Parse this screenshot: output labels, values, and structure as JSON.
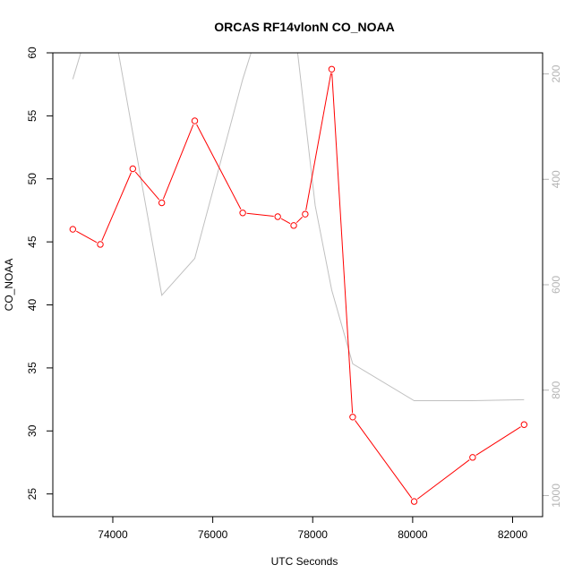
{
  "chart_data": {
    "type": "line",
    "title": "ORCAS RF14vlonN CO_NOAA",
    "xlabel": "UTC Seconds",
    "ylabel": "CO_NOAA",
    "xlim": [
      72800,
      82600
    ],
    "ylim": [
      23.2,
      60
    ],
    "y2lim": [
      1040,
      160
    ],
    "x_ticks": [
      "74000",
      "76000",
      "78000",
      "80000",
      "82000"
    ],
    "y_ticks": [
      "25",
      "30",
      "35",
      "40",
      "45",
      "50",
      "55",
      "60"
    ],
    "y2_ticks": [
      "200",
      "400",
      "600",
      "800",
      "1000"
    ],
    "series": [
      {
        "color": "#ff0000",
        "markers": "open-circle",
        "axis": "left",
        "x": [
          73200,
          73750,
          74400,
          74980,
          75640,
          76600,
          77300,
          77620,
          77850,
          78380,
          78800,
          80030,
          81200,
          82230
        ],
        "y": [
          46.0,
          44.8,
          50.8,
          48.1,
          54.6,
          47.3,
          47.0,
          46.3,
          47.2,
          58.7,
          31.1,
          24.4,
          27.9,
          30.5
        ]
      },
      {
        "color": "#c0c0c0",
        "markers": "none",
        "axis": "right",
        "x": [
          73200,
          73550,
          74000,
          74980,
          75640,
          76600,
          76900,
          77300,
          77650,
          78050,
          78380,
          78800,
          80030,
          81200,
          82230
        ],
        "y": [
          210,
          100,
          100,
          620,
          550,
          210,
          120,
          100,
          120,
          450,
          610,
          750,
          820,
          820,
          818
        ]
      }
    ]
  }
}
